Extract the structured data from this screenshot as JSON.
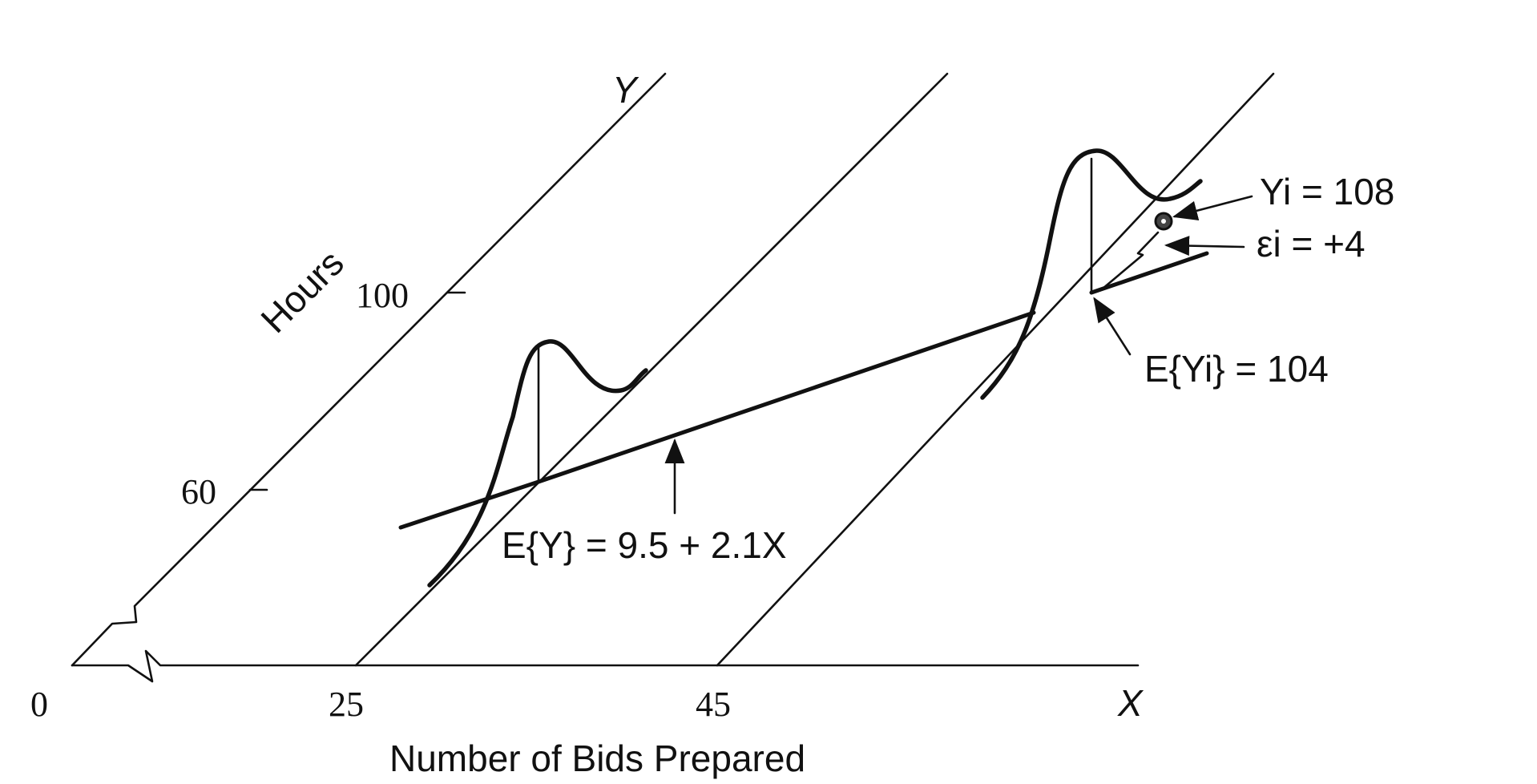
{
  "axes": {
    "x_axis_label": "X",
    "y_axis_label": "Y",
    "x_title": "Number of Bids Prepared",
    "y_title": "Hours",
    "origin_label": "0",
    "x_ticks": [
      "25",
      "45"
    ],
    "y_ticks": [
      "60",
      "100"
    ]
  },
  "annotations": {
    "regression_eq": "E{Y} = 9.5 + 2.1X",
    "expected_value": "E{Yi} = 104",
    "observed_value": "Yi = 108",
    "error_term": "εi = +4"
  },
  "chart_data": {
    "type": "line",
    "model": {
      "intercept": 9.5,
      "slope": 2.1
    },
    "x": [
      25,
      45
    ],
    "expected_y": [
      62,
      104
    ],
    "observation": {
      "x": 45,
      "y": 108,
      "expected": 104,
      "error": 4
    },
    "xlabel": "Number of Bids Prepared",
    "ylabel": "Hours",
    "x_ticks": [
      0,
      25,
      45
    ],
    "y_ticks": [
      60,
      100
    ]
  }
}
